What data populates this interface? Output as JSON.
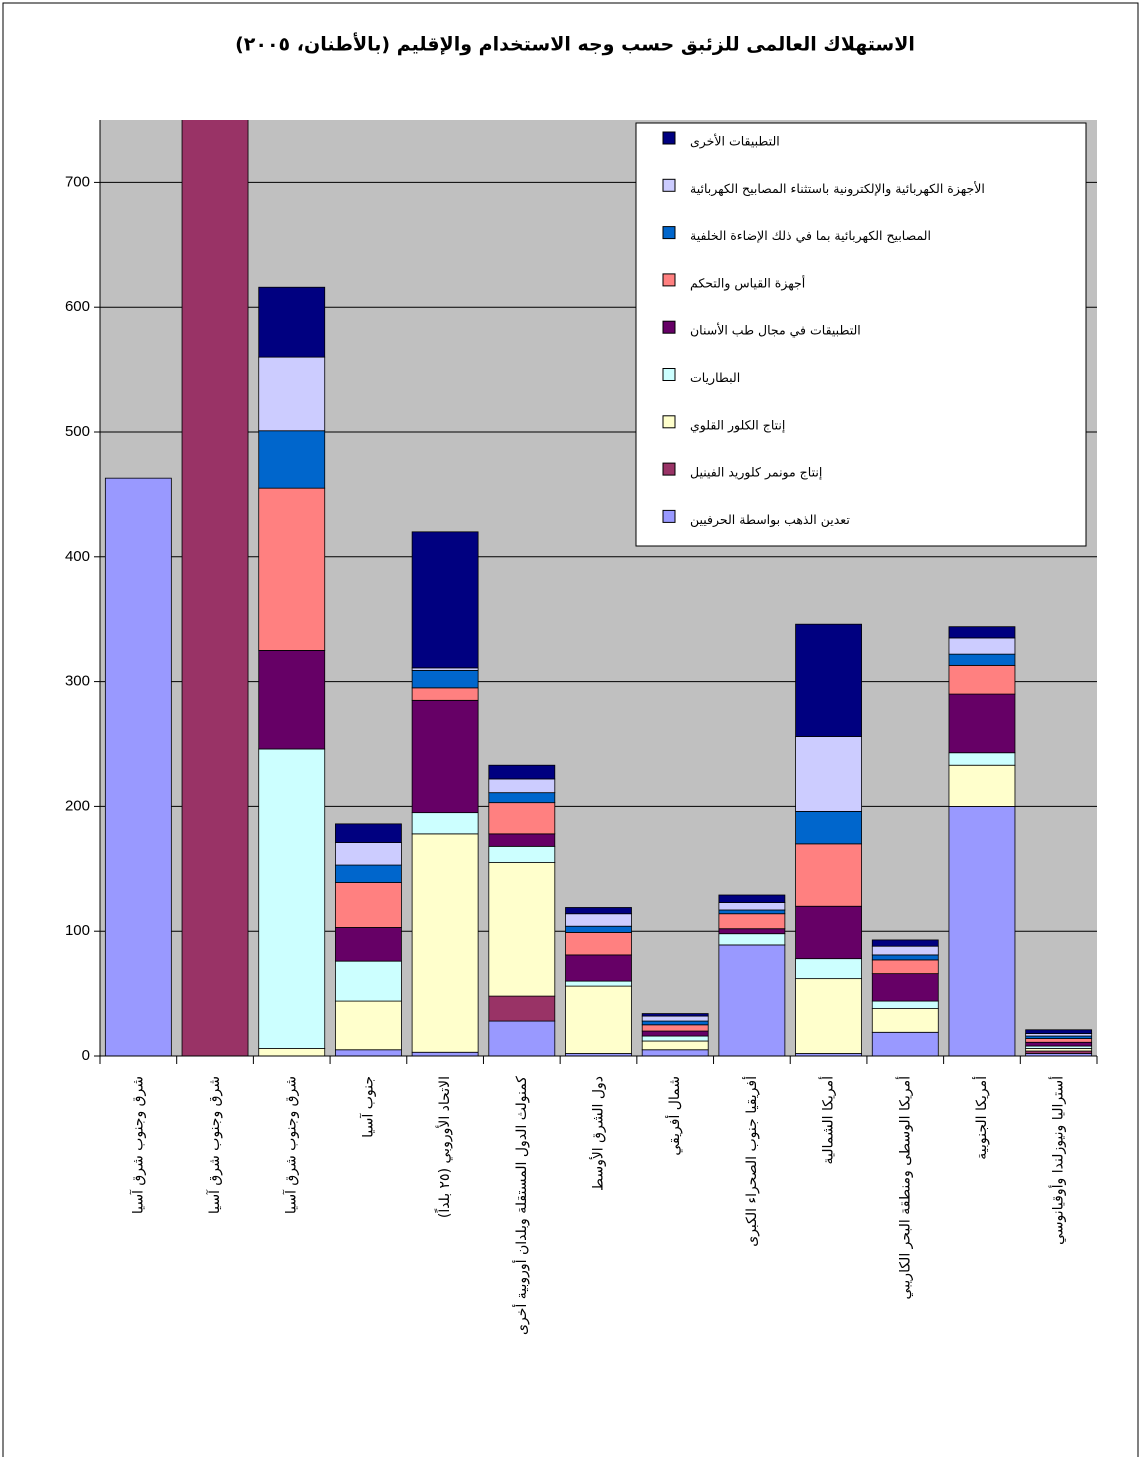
{
  "chart_data": {
    "type": "stacked_bar",
    "title": "الاستهلاك العالمى للزئبق حسب وجه الاستخدام والإقليم (بالأطنان، ٢٠٠٥)",
    "categories": [
      "شرق وجنوب شرق آسيا",
      "شرق وجنوب شرق آسيا",
      "شرق وجنوب شرق آسيا",
      "جنوب آسيا",
      "الاتحاد الأوروبي (٢٥ بلداً)",
      "كمنولث الدول المستقلة وبلدان أوروبية أخرى",
      "دول الشرق الأوسط",
      "شمال أفريقي",
      "أفريقيا جنوب الصحراء الكبرى",
      "أمريكا الشمالية",
      "أمريكا الوسطى ومنطقة البحر الكاريبي",
      "أمريكا الجنوبية",
      "أستراليا ونيوزلندا وأوقيانوسي"
    ],
    "series": [
      {
        "name": "تعدين الذهب بواسطة الحرفيين",
        "color": "#9999ff",
        "values": [
          463,
          0,
          0,
          5,
          3,
          28,
          2,
          5,
          89,
          2,
          19,
          200,
          2
        ]
      },
      {
        "name": "إنتاج مونمر كلوريد الفينيل",
        "color": "#993366",
        "values": [
          0,
          770,
          0,
          0,
          0,
          20,
          0,
          0,
          0,
          0,
          0,
          0,
          2
        ]
      },
      {
        "name": "إنتاج الكلور القلوي",
        "color": "#ffffcc",
        "values": [
          0,
          0,
          6,
          39,
          175,
          107,
          54,
          7,
          0,
          60,
          19,
          33,
          2
        ]
      },
      {
        "name": "البطاريات",
        "color": "#ccffff",
        "values": [
          0,
          0,
          240,
          32,
          17,
          13,
          4,
          4,
          9,
          16,
          6,
          10,
          2
        ]
      },
      {
        "name": "التطبيقات في مجال طب الأسنان",
        "color": "#660066",
        "values": [
          0,
          0,
          79,
          27,
          90,
          10,
          21,
          4,
          4,
          42,
          22,
          47,
          3
        ]
      },
      {
        "name": "أجهزة القياس والتحكم",
        "color": "#ff8080",
        "values": [
          0,
          0,
          130,
          36,
          10,
          25,
          18,
          5,
          12,
          50,
          11,
          23,
          3
        ]
      },
      {
        "name": "المصابيح الكهربائية بما في ذلك الإضاءة الخلفية",
        "color": "#0066cc",
        "values": [
          0,
          0,
          46,
          14,
          14,
          8,
          5,
          3,
          3,
          26,
          4,
          9,
          2
        ]
      },
      {
        "name": "الأجهزة الكهربائية والإلكترونية باستثناء المصابيح الكهربائية",
        "color": "#ccccff",
        "values": [
          0,
          0,
          59,
          18,
          2,
          11,
          10,
          4,
          6,
          60,
          7,
          13,
          2
        ]
      },
      {
        "name": "التطبيقات الأخرى",
        "color": "#000080",
        "values": [
          0,
          0,
          56,
          15,
          109,
          11,
          5,
          2,
          6,
          90,
          5,
          9,
          3
        ]
      }
    ],
    "ylim": [
      0,
      750
    ],
    "yticks": [
      0,
      100,
      200,
      300,
      400,
      500,
      600,
      700
    ],
    "grid": true,
    "legend": "top-right",
    "plot_background": "#c0c0c0"
  }
}
